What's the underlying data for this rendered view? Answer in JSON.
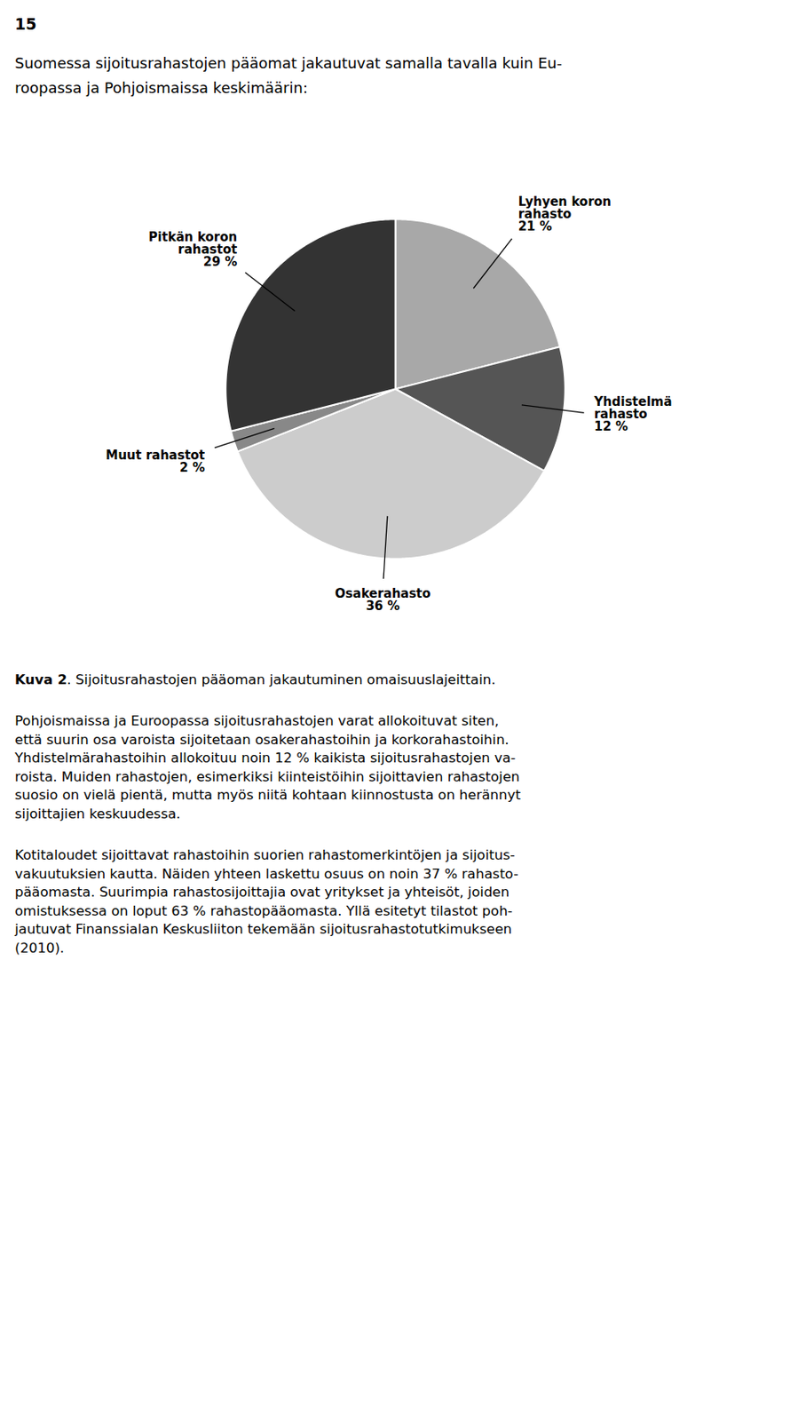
{
  "page_number": "15",
  "intro_lines": [
    "Suomessa sijoitusrahastojen pääomat jakautuvat samalla tavalla kuin Eu-",
    "roopassa ja Pohjoismaissa keskimäärin:"
  ],
  "chart_data": {
    "type": "pie",
    "categories": [
      "Lyhyen koron\nrahasto",
      "Yhdistelmä\nrahasto",
      "Osakerahasto",
      "Muut rahastot",
      "Pitkän koron\nrahastot"
    ],
    "values": [
      21,
      12,
      36,
      2,
      29
    ],
    "value_labels": [
      "21 %",
      "12 %",
      "36 %",
      "2 %",
      "29 %"
    ],
    "colors": [
      "#a8a8a8",
      "#555555",
      "#cccccc",
      "#888888",
      "#333333"
    ],
    "data_labels": true
  },
  "caption_bold": "Kuva 2",
  "caption_rest": ". Sijoitusrahastojen pääoman jakautuminen omaisuuslajeittain.",
  "paragraphs": [
    [
      "Pohjoismaissa ja Euroopassa sijoitusrahastojen varat allokoituvat siten,",
      "että suurin osa varoista sijoitetaan osakerahastoihin ja korkorahastoihin.",
      "Yhdistelmärahastoihin allokoituu noin 12 % kaikista sijoitusrahastojen va-",
      "roista. Muiden rahastojen, esimerkiksi kiinteistöihin sijoittavien rahastojen",
      "suosio on vielä pientä, mutta myös niitä kohtaan kiinnostusta on herännyt",
      "sijoittajien keskuudessa."
    ],
    [
      "Kotitaloudet sijoittavat rahastoihin suorien rahastomerkintöjen ja sijoitus-",
      "vakuutuksien kautta. Näiden yhteen laskettu osuus on noin 37 % rahasto-",
      "pääomasta. Suurimpia rahastosijoittajia ovat yritykset ja yhteisöt, joiden",
      "omistuksessa on loput 63 % rahastopääomasta. Yllä esitetyt tilastot poh-",
      "jautuvat Finanssialan Keskusliiton tekemään sijoitusrahastotutkimukseen",
      "(2010)."
    ]
  ]
}
